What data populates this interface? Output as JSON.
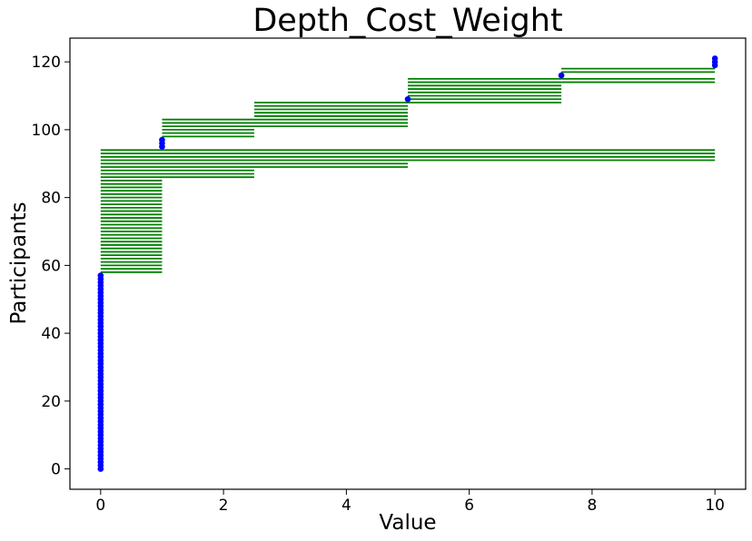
{
  "chart_data": {
    "type": "scatter",
    "title": "Depth_Cost_Weight",
    "xlabel": "Value",
    "ylabel": "Participants",
    "xlim": [
      -0.5,
      10.5
    ],
    "ylim": [
      -6,
      127
    ],
    "xticks": [
      0,
      2,
      4,
      6,
      8,
      10
    ],
    "yticks": [
      0,
      20,
      40,
      60,
      80,
      100,
      120
    ],
    "grid": false,
    "series": [
      {
        "kind": "points",
        "color": "#0000ff",
        "points": [
          {
            "x": 0,
            "y_from": 0,
            "y_to": 57
          },
          {
            "x": 1,
            "y_from": 95,
            "y_to": 97
          },
          {
            "x": 5,
            "y_from": 109,
            "y_to": 109
          },
          {
            "x": 7.5,
            "y_from": 116,
            "y_to": 116
          },
          {
            "x": 10,
            "y_from": 119,
            "y_to": 121
          }
        ]
      },
      {
        "kind": "ranges",
        "color": "#008000",
        "ranges": [
          {
            "x_start": 0,
            "x_end": 1,
            "y_from": 58,
            "y_to": 85
          },
          {
            "x_start": 0,
            "x_end": 2.5,
            "y_from": 86,
            "y_to": 88
          },
          {
            "x_start": 0,
            "x_end": 5,
            "y_from": 89,
            "y_to": 90
          },
          {
            "x_start": 0,
            "x_end": 10,
            "y_from": 91,
            "y_to": 94
          },
          {
            "x_start": 1,
            "x_end": 2.5,
            "y_from": 98,
            "y_to": 100
          },
          {
            "x_start": 1,
            "x_end": 5,
            "y_from": 101,
            "y_to": 103
          },
          {
            "x_start": 2.5,
            "x_end": 5,
            "y_from": 104,
            "y_to": 108
          },
          {
            "x_start": 5,
            "x_end": 7.5,
            "y_from": 108,
            "y_to": 115
          },
          {
            "x_start": 7.5,
            "x_end": 10,
            "y_from": 114,
            "y_to": 115
          },
          {
            "x_start": 7.5,
            "x_end": 10,
            "y_from": 117,
            "y_to": 118
          }
        ]
      }
    ]
  }
}
